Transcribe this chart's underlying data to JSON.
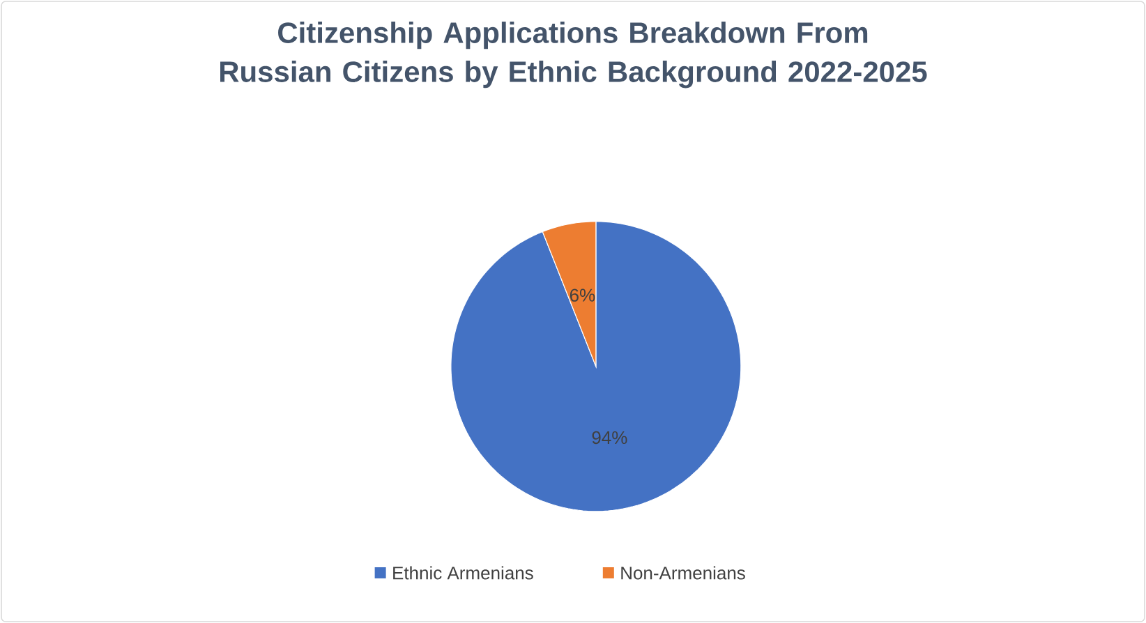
{
  "chart_data": {
    "type": "pie",
    "title": "Citizenship Applications Breakdown From Russian Citizens by Ethnic Background 2022-2025",
    "categories": [
      "Ethnic Armenians",
      "Non-Armenians"
    ],
    "values": [
      94,
      6
    ],
    "colors": [
      "#4472c4",
      "#ed7d31"
    ],
    "value_labels": [
      "94%",
      "6%"
    ],
    "legend": "bottom"
  }
}
